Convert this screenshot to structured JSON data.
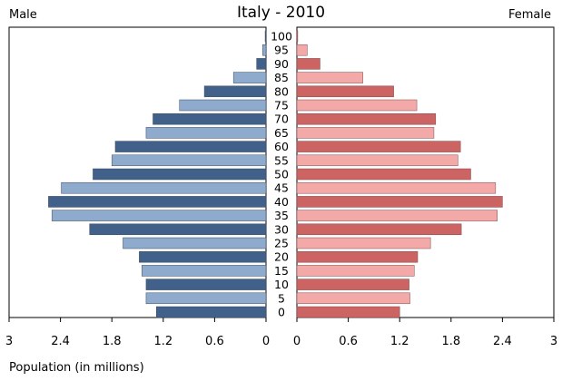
{
  "chart_data": {
    "type": "bar",
    "title": "Italy - 2010",
    "left_label": "Male",
    "right_label": "Female",
    "xlabel": "Population (in millions)",
    "xlim": [
      0,
      3
    ],
    "ticks": [
      "3",
      "2.4",
      "1.8",
      "1.2",
      "0.6",
      "0"
    ],
    "ticks_right": [
      "0",
      "0.6",
      "1.2",
      "1.8",
      "2.4",
      "3"
    ],
    "tick_values": [
      3,
      2.4,
      1.8,
      1.2,
      0.6,
      0
    ],
    "tick_values_right": [
      0,
      0.6,
      1.2,
      1.8,
      2.4,
      3
    ],
    "categories": [
      "100",
      "95",
      "90",
      "85",
      "80",
      "75",
      "70",
      "65",
      "60",
      "55",
      "50",
      "45",
      "40",
      "35",
      "30",
      "25",
      "20",
      "15",
      "10",
      "5",
      "0"
    ],
    "series": [
      {
        "name": "Male",
        "values": [
          0.01,
          0.04,
          0.11,
          0.38,
          0.72,
          1.01,
          1.32,
          1.4,
          1.76,
          1.8,
          2.02,
          2.39,
          2.54,
          2.5,
          2.06,
          1.67,
          1.48,
          1.45,
          1.4,
          1.4,
          1.28
        ]
      },
      {
        "name": "Female",
        "values": [
          0.01,
          0.12,
          0.27,
          0.77,
          1.13,
          1.4,
          1.62,
          1.6,
          1.91,
          1.88,
          2.03,
          2.32,
          2.4,
          2.34,
          1.92,
          1.56,
          1.41,
          1.37,
          1.31,
          1.32,
          1.2
        ]
      }
    ],
    "colors": {
      "male_dark": "#41618a",
      "male_light": "#8eaacd",
      "female_dark": "#cc6463",
      "female_light": "#f4a9a9"
    },
    "grid": false
  }
}
